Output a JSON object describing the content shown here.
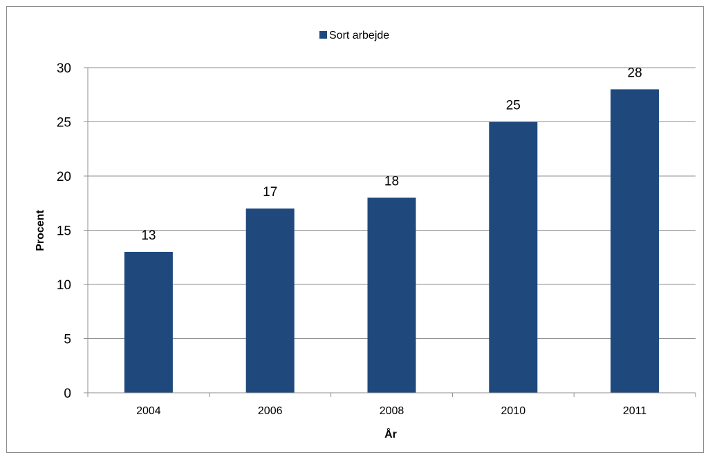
{
  "chart_data": {
    "type": "bar",
    "categories": [
      "2004",
      "2006",
      "2008",
      "2010",
      "2011"
    ],
    "series": [
      {
        "name": "Sort arbejde",
        "values": [
          13,
          17,
          18,
          25,
          28
        ],
        "color": "#1f497d"
      }
    ],
    "data_labels": [
      "13",
      "17",
      "18",
      "25",
      "28"
    ],
    "y_ticks": [
      "0",
      "5",
      "10",
      "15",
      "20",
      "25",
      "30"
    ],
    "xlabel": "År",
    "ylabel": "Procent",
    "ylim": [
      0,
      30
    ],
    "y_step": 5,
    "grid": "horizontal",
    "legend_position": "top-center",
    "gridline_color": "#8c8c8c"
  }
}
